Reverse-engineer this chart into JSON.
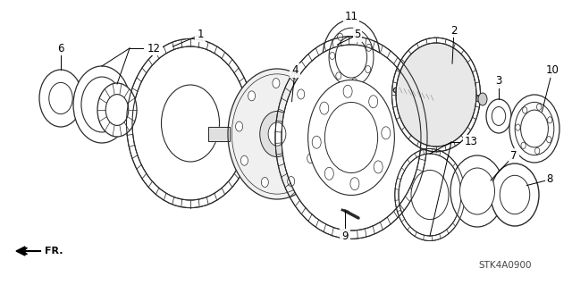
{
  "bg_color": "#ffffff",
  "diagram_code": "STK4A0900",
  "line_color": "#2a2a2a",
  "shade_color": "#888888",
  "light_color": "#cccccc",
  "fig_width": 6.4,
  "fig_height": 3.19,
  "dpi": 100
}
